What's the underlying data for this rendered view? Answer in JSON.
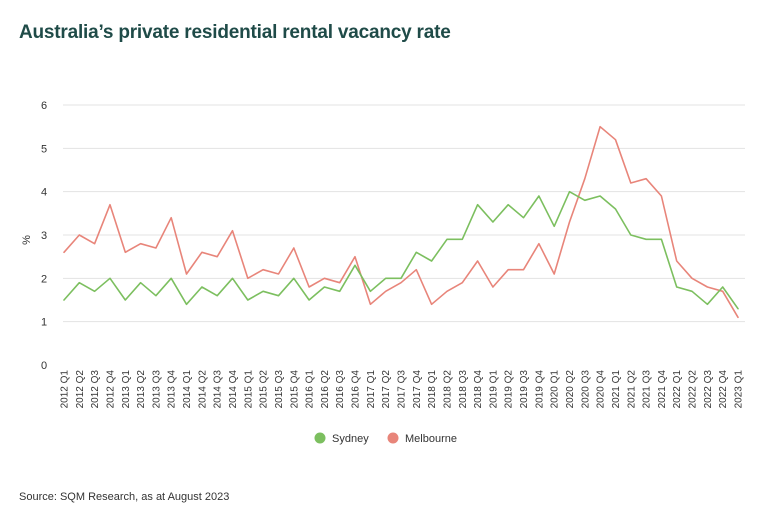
{
  "page": {
    "title": "Australia’s private residential rental vacancy rate",
    "source": "Source: SQM Research, as at August 2023"
  },
  "chart_data": {
    "type": "line",
    "title": "Australia’s private residential rental vacancy rate",
    "xlabel": "",
    "ylabel": "%",
    "ylim": [
      0,
      6
    ],
    "yticks": [
      0,
      1,
      2,
      3,
      4,
      5,
      6
    ],
    "grid": true,
    "legend_position": "bottom-center",
    "categories": [
      "2012 Q1",
      "2012 Q2",
      "2012 Q3",
      "2012 Q4",
      "2013 Q1",
      "2013 Q2",
      "2013 Q3",
      "2013 Q4",
      "2014 Q1",
      "2014 Q2",
      "2014 Q3",
      "2014 Q4",
      "2015 Q1",
      "2015 Q2",
      "2015 Q3",
      "2015 Q4",
      "2016 Q1",
      "2016 Q2",
      "2016 Q3",
      "2016 Q4",
      "2017 Q1",
      "2017 Q2",
      "2017 Q3",
      "2017 Q4",
      "2018 Q1",
      "2018 Q2",
      "2018 Q3",
      "2018 Q4",
      "2019 Q1",
      "2019 Q2",
      "2019 Q3",
      "2019 Q4",
      "2020 Q1",
      "2020 Q2",
      "2020 Q3",
      "2020 Q4",
      "2021 Q1",
      "2021 Q2",
      "2021 Q3",
      "2021 Q4",
      "2022 Q1",
      "2022 Q2",
      "2022 Q3",
      "2022 Q4",
      "2023 Q1"
    ],
    "series": [
      {
        "name": "Sydney",
        "color": "#7cbf5f",
        "values": [
          1.5,
          1.9,
          1.7,
          2.0,
          1.5,
          1.9,
          1.6,
          2.0,
          1.4,
          1.8,
          1.6,
          2.0,
          1.5,
          1.7,
          1.6,
          2.0,
          1.5,
          1.8,
          1.7,
          2.3,
          1.7,
          2.0,
          2.0,
          2.6,
          2.4,
          2.9,
          2.9,
          3.7,
          3.3,
          3.7,
          3.4,
          3.9,
          3.2,
          4.0,
          3.8,
          3.9,
          3.6,
          3.0,
          2.9,
          2.9,
          1.8,
          1.7,
          1.4,
          1.8,
          1.3
        ]
      },
      {
        "name": "Melbourne",
        "color": "#e8857a",
        "values": [
          2.6,
          3.0,
          2.8,
          3.7,
          2.6,
          2.8,
          2.7,
          3.4,
          2.1,
          2.6,
          2.5,
          3.1,
          2.0,
          2.2,
          2.1,
          2.7,
          1.8,
          2.0,
          1.9,
          2.5,
          1.4,
          1.7,
          1.9,
          2.2,
          1.4,
          1.7,
          1.9,
          2.4,
          1.8,
          2.2,
          2.2,
          2.8,
          2.1,
          3.3,
          4.3,
          5.5,
          5.2,
          4.2,
          4.3,
          3.9,
          2.4,
          2.0,
          1.8,
          1.7,
          1.1
        ]
      }
    ]
  }
}
